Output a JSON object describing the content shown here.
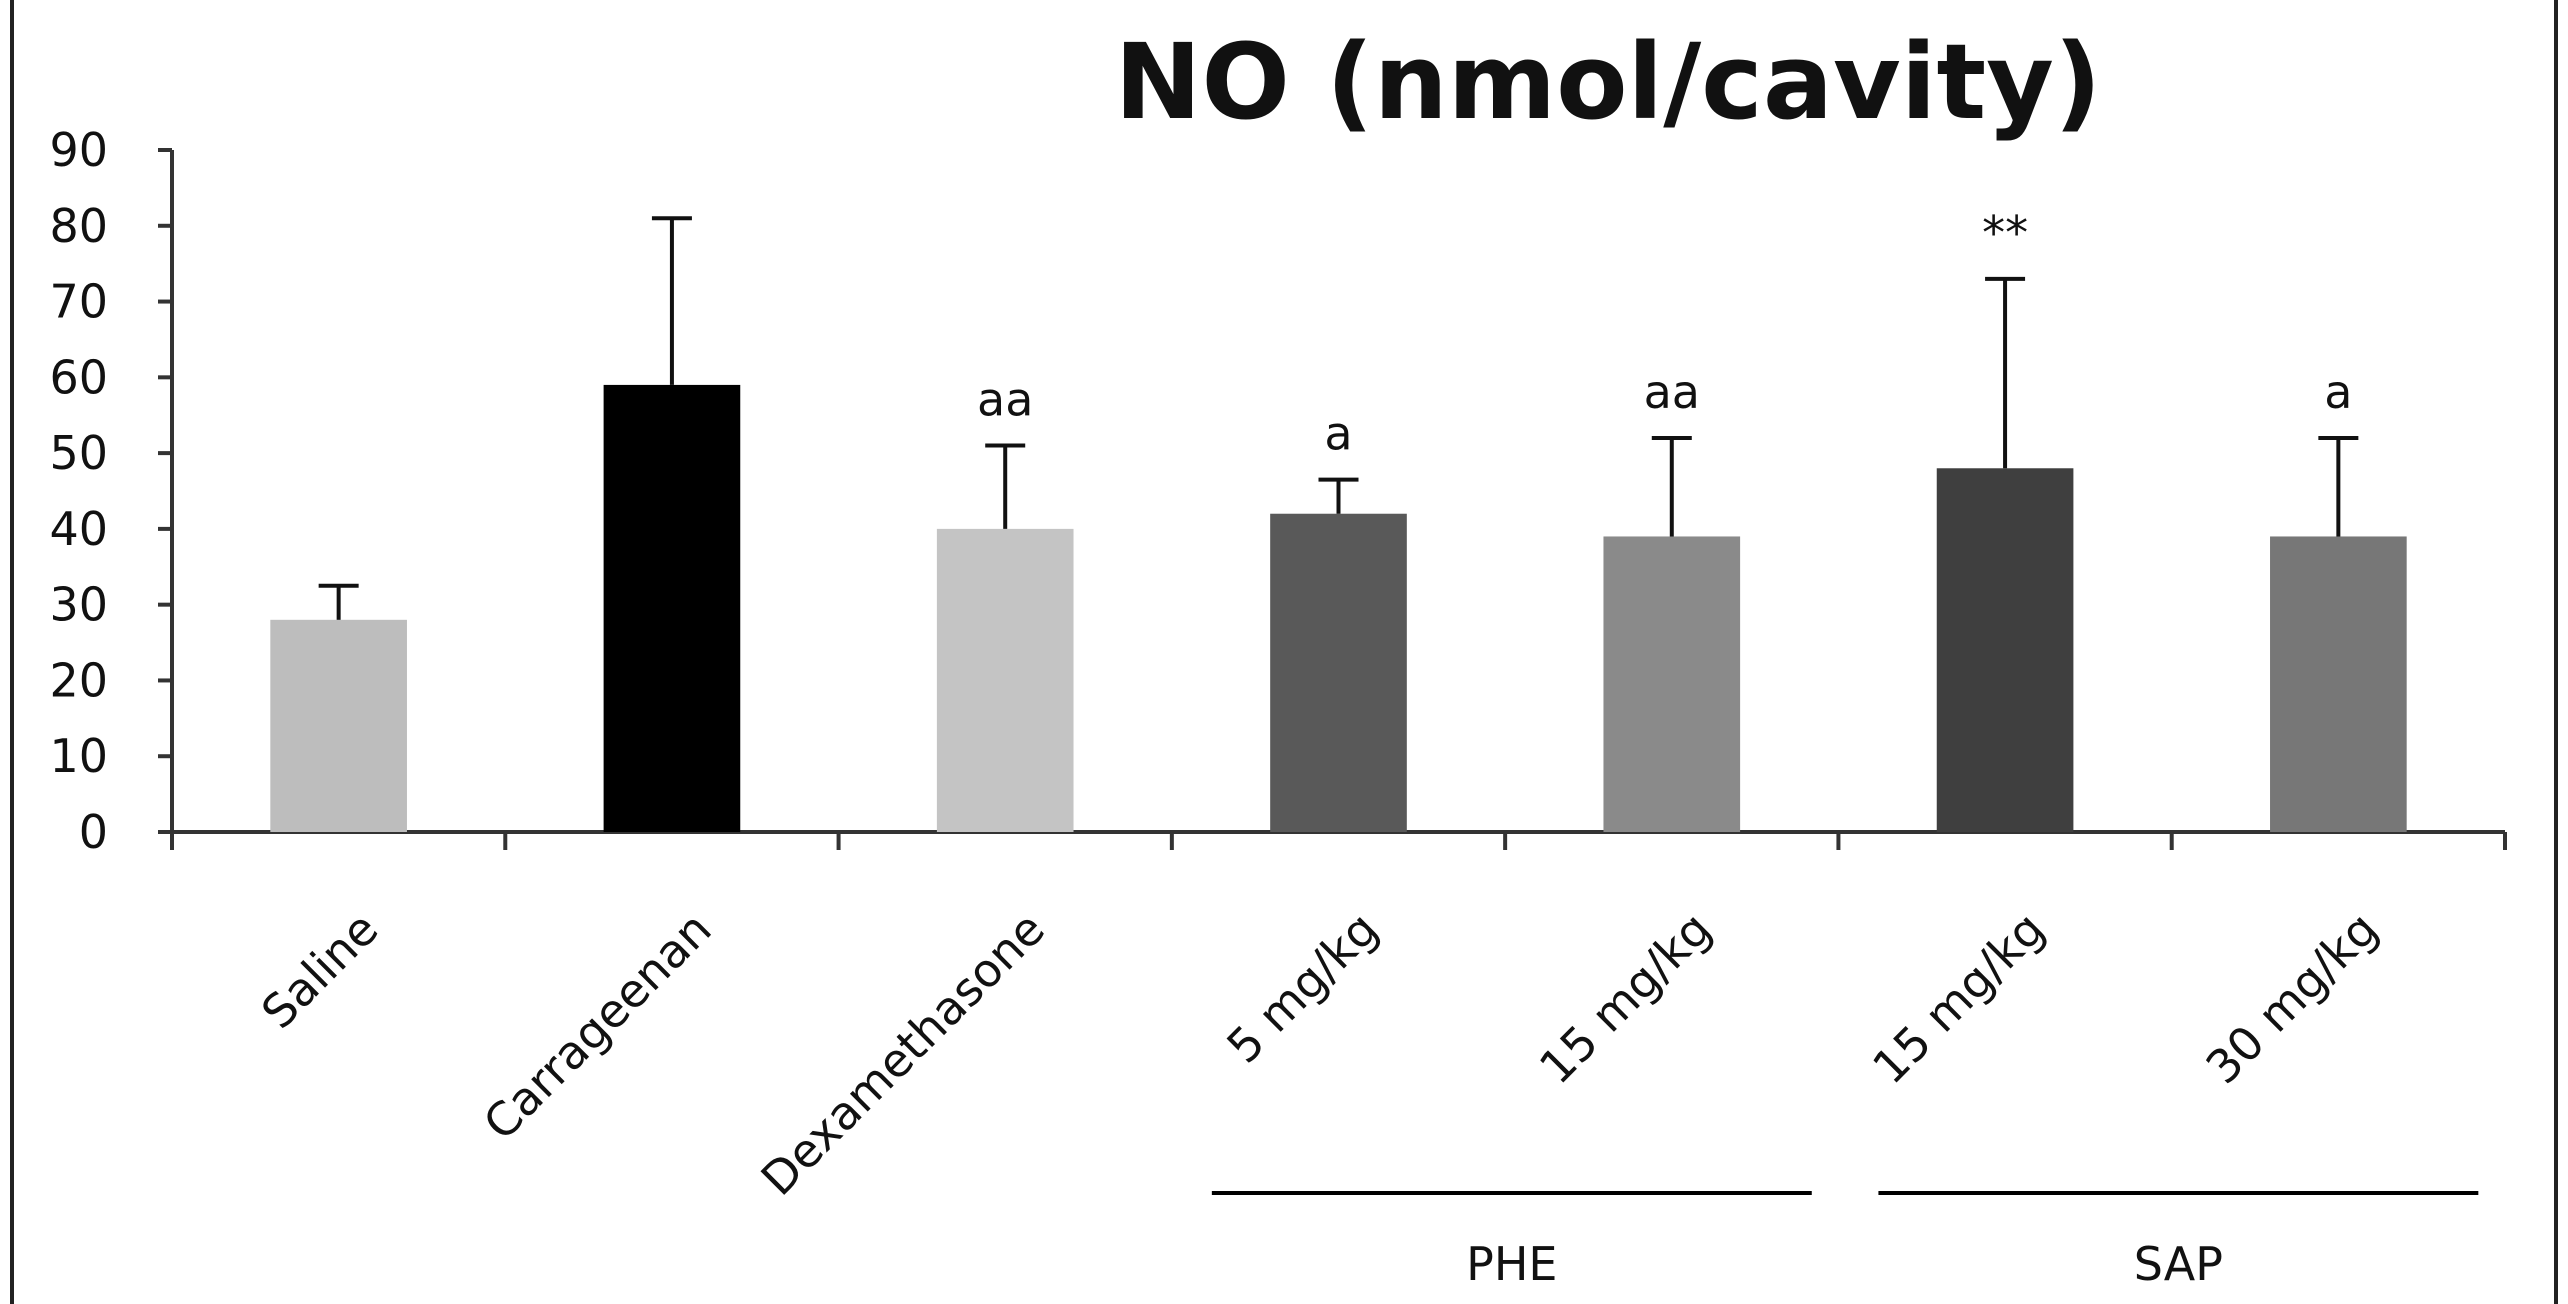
{
  "chart_data": {
    "type": "bar",
    "title": "NO (nmol/cavity)",
    "ylim": [
      0,
      90
    ],
    "yticks": [
      0,
      10,
      20,
      30,
      40,
      50,
      60,
      70,
      80,
      90
    ],
    "categories": [
      "Saline",
      "Carrageenan",
      "Dexamethasone",
      "5 mg/kg",
      "15 mg/kg",
      "15 mg/kg",
      "30 mg/kg"
    ],
    "values": [
      28,
      59,
      40,
      42,
      39,
      48,
      39
    ],
    "errors": [
      4.5,
      22,
      11,
      4.5,
      13,
      25,
      13
    ],
    "annotations": [
      "",
      "",
      "aa",
      "a",
      "aa",
      "**",
      "a"
    ],
    "colors": [
      "#bdbdbd",
      "#000000",
      "#c4c4c4",
      "#595959",
      "#8a8a8a",
      "#3f3f3f",
      "#777777"
    ],
    "groups": [
      {
        "label": "PHE",
        "categories": [
          3,
          4
        ]
      },
      {
        "label": "SAP",
        "categories": [
          5,
          6
        ]
      }
    ],
    "grid": false,
    "legend": "none"
  }
}
